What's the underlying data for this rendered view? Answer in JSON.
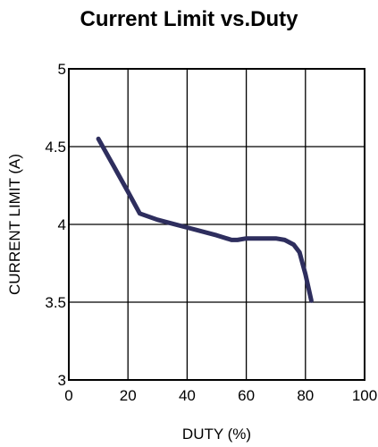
{
  "chart_data": {
    "type": "line",
    "title": "Current Limit vs.Duty",
    "xlabel": "DUTY (%)",
    "ylabel": "CURRENT LIMIT (A)",
    "xlim": [
      0,
      100
    ],
    "ylim": [
      3,
      5
    ],
    "x_ticks": [
      0,
      20,
      40,
      60,
      80,
      100
    ],
    "y_ticks": [
      3,
      3.5,
      4,
      4.5,
      5
    ],
    "x_tick_labels": [
      "0",
      "20",
      "40",
      "60",
      "80",
      "100"
    ],
    "y_tick_labels": [
      "3",
      "3.5",
      "4",
      "4.5",
      "5"
    ],
    "grid": true,
    "line_color": "#2e2e5e",
    "series": [
      {
        "x": [
          10,
          15,
          20,
          24,
          30,
          40,
          50,
          55,
          57,
          60,
          65,
          70,
          73,
          76,
          78,
          80,
          82
        ],
        "y": [
          4.55,
          4.38,
          4.21,
          4.07,
          4.03,
          3.98,
          3.93,
          3.9,
          3.9,
          3.91,
          3.91,
          3.91,
          3.9,
          3.87,
          3.82,
          3.68,
          3.51
        ]
      }
    ]
  }
}
